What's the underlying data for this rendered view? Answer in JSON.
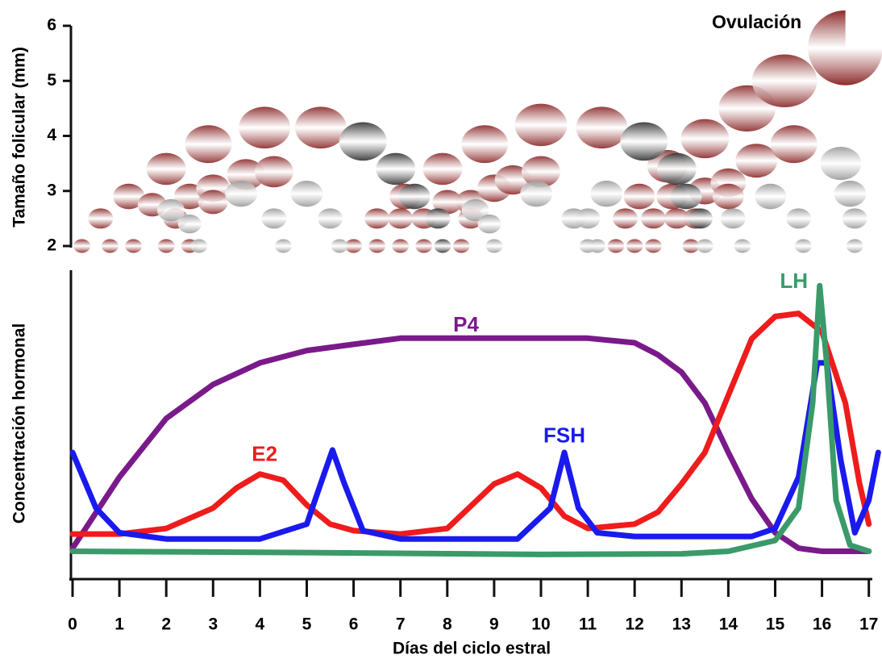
{
  "chart_data": [
    {
      "type": "scatter",
      "y_label": "Tamaño folicular (mm)",
      "annotation": "Ovulación",
      "xlim": [
        0,
        17.2
      ],
      "ylim": [
        2,
        6
      ],
      "yticks": [
        2,
        3,
        4,
        5,
        6
      ],
      "series": [
        {
          "color": "#8c2b2b",
          "x": [
            0.2,
            0.6,
            1.2,
            2,
            2.9,
            4.1,
            5.3,
            0.8,
            1.3,
            1.7,
            2.2,
            2.5,
            3,
            3.7,
            4.3,
            2,
            2.5,
            3,
            6,
            6.5,
            7.1,
            7.9,
            8.8,
            10,
            11.3,
            6.5,
            7,
            7,
            7.5,
            7.5,
            8,
            8.5,
            9,
            9.4,
            10,
            8.3,
            8.5,
            11.6,
            11.8,
            12.1,
            12.7,
            13.5,
            14.4,
            15.2,
            16.5,
            12,
            12.4,
            12.4,
            12.9,
            12.8,
            13.3,
            13.5,
            14,
            14.6,
            15.4,
            13.2,
            14
          ],
          "values": [
            2,
            2.5,
            2.9,
            3.4,
            3.85,
            4.15,
            4.15,
            2,
            2,
            2.75,
            2.5,
            2.9,
            3.05,
            3.3,
            3.35,
            2,
            2,
            2.8,
            2,
            2.5,
            2.9,
            3.4,
            3.85,
            4.2,
            4.15,
            2,
            2,
            2.5,
            2.5,
            2,
            2.8,
            2.8,
            3.05,
            3.2,
            3.35,
            2,
            2.5,
            2,
            2.5,
            2.9,
            3.45,
            3.95,
            4.5,
            5,
            5.6,
            2,
            2,
            2.5,
            2.5,
            2.9,
            2.5,
            3,
            3.15,
            3.55,
            3.85,
            2,
            2.9
          ]
        },
        {
          "color": "#9a9a9a",
          "x": [
            2.1,
            2.5,
            2.7,
            3.6,
            4.3,
            4.5,
            5,
            5.5,
            5.7,
            8.6,
            8.9,
            9,
            9.9,
            10.7,
            11,
            11.4,
            11,
            11.2,
            13.5,
            14.1,
            14.3,
            14.9,
            15.5,
            15.6,
            16.4,
            16.6,
            16.7,
            16.7
          ],
          "values": [
            2.65,
            2.4,
            2,
            2.95,
            2.5,
            2,
            2.95,
            2.5,
            2,
            2.65,
            2.4,
            2,
            2.95,
            2.5,
            2,
            2.95,
            2.5,
            2,
            2,
            2.5,
            2,
            2.9,
            2.5,
            2,
            3.5,
            2.95,
            2.5,
            2
          ]
        },
        {
          "color": "#333333",
          "x": [
            6.2,
            6.9,
            7.3,
            7.8,
            7.9,
            12.2,
            12.9,
            13.1,
            13.4
          ],
          "values": [
            3.9,
            3.4,
            2.9,
            2.5,
            2,
            3.9,
            3.4,
            2.9,
            2.5
          ]
        }
      ]
    },
    {
      "type": "line",
      "y_label": "Concentración hormonal",
      "x_label": "Días del ciclo estral",
      "xlim": [
        0,
        17.2
      ],
      "ylim": [
        0,
        100
      ],
      "xticks": [
        0,
        1,
        2,
        3,
        4,
        5,
        6,
        7,
        8,
        9,
        10,
        11,
        12,
        13,
        14,
        15,
        16,
        17
      ],
      "series": [
        {
          "name": "P4",
          "color": "#7a1a8a",
          "x": [
            0,
            1,
            2,
            3,
            4,
            5,
            6,
            7,
            9,
            11,
            12,
            12.5,
            13,
            13.5,
            14,
            14.5,
            15,
            15.5,
            16,
            17
          ],
          "values": [
            10,
            33,
            52,
            63,
            70,
            74,
            76,
            78,
            78,
            78,
            76.5,
            72.6,
            67,
            57,
            41,
            26,
            15,
            10,
            9,
            9
          ]
        },
        {
          "name": "E2",
          "color": "#ee1c1c",
          "x": [
            0,
            1,
            2,
            3,
            3.5,
            4,
            4.5,
            5,
            5.5,
            6,
            7,
            8,
            9,
            9.5,
            10,
            10.5,
            11,
            12,
            12.5,
            13,
            13.5,
            14,
            14.5,
            15,
            15.5,
            16,
            16.5,
            16.8,
            17
          ],
          "values": [
            14.6,
            14.6,
            16.4,
            23,
            29.5,
            34,
            32,
            24,
            17.8,
            15.7,
            14.6,
            16.4,
            30.8,
            34,
            29.5,
            20.4,
            16.4,
            17.8,
            21.7,
            30.8,
            41,
            59.5,
            77.8,
            85,
            86,
            80,
            57,
            31,
            17.8
          ]
        },
        {
          "name": "FSH",
          "color": "#1a1aee",
          "x": [
            0,
            0.5,
            1,
            2,
            4,
            5,
            5.3,
            5.55,
            5.8,
            6.2,
            7,
            9.5,
            10.2,
            10.5,
            10.8,
            11.2,
            12,
            14.5,
            15,
            15.5,
            15.9,
            16.1,
            16.4,
            16.7,
            17,
            17.2
          ],
          "values": [
            41,
            23,
            15,
            13,
            13,
            17.8,
            31,
            41.8,
            31,
            15.7,
            13,
            13,
            23,
            41,
            23,
            15,
            13.8,
            13.8,
            16.4,
            33,
            70,
            70,
            38.6,
            15,
            25.6,
            41
          ]
        },
        {
          "name": "LH",
          "color": "#3a9a6a",
          "x": [
            0,
            5,
            10,
            13,
            14,
            15,
            15.5,
            15.8,
            15.95,
            16.1,
            16.3,
            16.6,
            17
          ],
          "values": [
            9,
            8.6,
            8,
            8.2,
            9,
            12.5,
            23,
            57,
            95,
            70,
            25.6,
            11,
            9
          ]
        }
      ]
    }
  ]
}
